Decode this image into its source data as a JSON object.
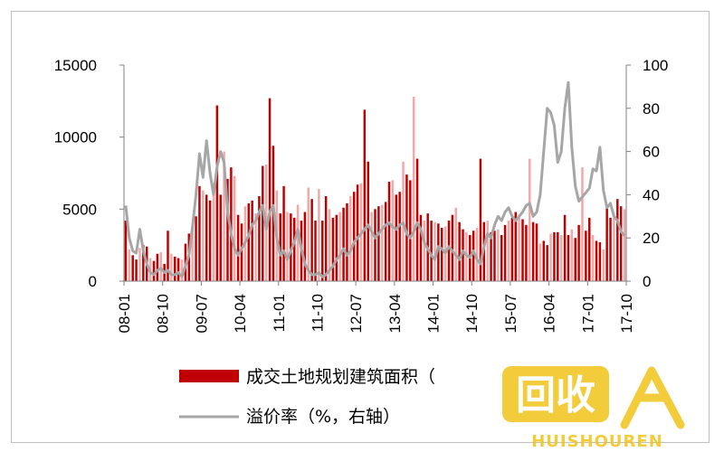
{
  "chart_data": {
    "type": "bar",
    "series": [
      {
        "name": "成交土地规划建筑面积（",
        "type": "bar",
        "axis": "left",
        "color": "#c00000",
        "alt_color": "#f4a7a7",
        "values": [
          4200,
          2200,
          1800,
          1500,
          2300,
          2500,
          2400,
          1600,
          1400,
          1900,
          2000,
          1200,
          3500,
          1900,
          1700,
          1600,
          1500,
          2600,
          3300,
          3800,
          4500,
          6600,
          6300,
          6000,
          5600,
          6800,
          12200,
          6000,
          9000,
          7100,
          7900,
          7300,
          4600,
          4000,
          5200,
          5400,
          5600,
          4700,
          5900,
          8000,
          8100,
          12700,
          9400,
          6300,
          4700,
          6600,
          4800,
          4700,
          4400,
          5300,
          4200,
          4800,
          6500,
          5700,
          4200,
          6400,
          4200,
          5900,
          5000,
          4400,
          4600,
          4800,
          5100,
          5400,
          5900,
          6200,
          6700,
          6800,
          11900,
          8300,
          4800,
          5000,
          5200,
          5300,
          5500,
          6900,
          7000,
          6000,
          6200,
          8300,
          7400,
          7000,
          12800,
          8500,
          4600,
          4200,
          4700,
          4200,
          4100,
          4000,
          3700,
          3800,
          4200,
          4600,
          5100,
          4100,
          3600,
          3400,
          3200,
          3500,
          3700,
          8500,
          4100,
          4200,
          3400,
          3500,
          3600,
          3200,
          3900,
          4200,
          4400,
          4800,
          4600,
          4300,
          3900,
          8500,
          4100,
          4000,
          2600,
          2800,
          2500,
          3300,
          3400,
          3400,
          3200,
          4600,
          3200,
          3600,
          3000,
          3900,
          7900,
          3500,
          4400,
          3200,
          2800,
          2700,
          2200,
          5300,
          4400,
          4400,
          5700,
          5200,
          5000
        ]
      },
      {
        "name": "溢价率（%，右轴）",
        "type": "line",
        "axis": "right",
        "color": "#a6a6a6",
        "values": [
          35,
          20,
          14,
          13,
          24,
          14,
          8,
          4,
          3,
          5,
          6,
          4,
          5,
          3,
          3,
          4,
          2,
          7,
          12,
          25,
          40,
          59,
          48,
          65,
          50,
          40,
          53,
          60,
          55,
          32,
          22,
          15,
          12,
          15,
          18,
          21,
          26,
          28,
          32,
          35,
          24,
          32,
          35,
          20,
          12,
          14,
          10,
          14,
          18,
          24,
          15,
          8,
          5,
          3,
          3,
          4,
          2,
          3,
          5,
          7,
          10,
          12,
          15,
          12,
          14,
          18,
          20,
          22,
          24,
          26,
          23,
          20,
          22,
          24,
          26,
          27,
          25,
          24,
          26,
          27,
          22,
          20,
          23,
          27,
          24,
          18,
          15,
          12,
          10,
          16,
          15,
          13,
          16,
          14,
          12,
          10,
          14,
          12,
          11,
          14,
          10,
          8,
          16,
          22,
          20,
          26,
          30,
          28,
          32,
          34,
          30,
          28,
          30,
          32,
          35,
          36,
          30,
          32,
          40,
          60,
          80,
          78,
          72,
          55,
          60,
          80,
          92,
          62,
          44,
          37,
          39,
          41,
          43,
          52,
          51,
          62,
          42,
          34,
          36,
          30,
          28,
          23,
          21
        ]
      }
    ],
    "x_tick_labels": [
      "08-01",
      "08-10",
      "09-07",
      "10-04",
      "11-01",
      "11-10",
      "12-07",
      "13-04",
      "14-01",
      "14-10",
      "15-07",
      "16-04",
      "17-01",
      "17-10"
    ],
    "y_left_ticks": [
      "0",
      "5000",
      "10000",
      "15000"
    ],
    "y_right_ticks": [
      "0",
      "20",
      "40",
      "60",
      "80",
      "100"
    ],
    "ylim_left": [
      0,
      15000
    ],
    "ylim_right": [
      0,
      100
    ],
    "legend": [
      {
        "label": "成交土地规划建筑面积（",
        "symbol": "bar"
      },
      {
        "label": "溢价率（%，右轴）",
        "symbol": "line"
      }
    ],
    "legend_position": "bottom",
    "grid": false
  },
  "watermark": {
    "text_cn": "回收",
    "text_en": "HUISHOUREN",
    "color": "#f0c419"
  }
}
